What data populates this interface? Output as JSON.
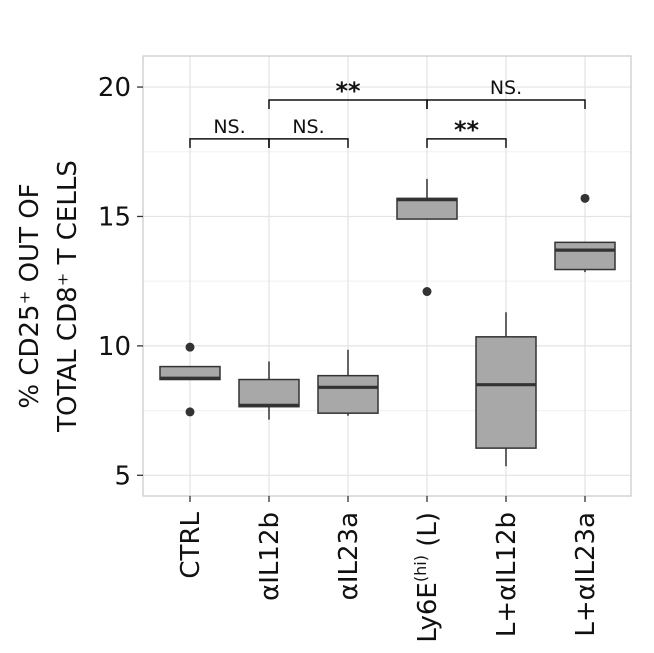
{
  "chart_data": {
    "type": "box",
    "title": "",
    "xlabel": "",
    "ylabel_line1": "% CD25⁺ OUT OF",
    "ylabel_line2": "TOTAL CD8⁺ T CELLS",
    "ylim": [
      4.2,
      21.2
    ],
    "yticks": [
      5,
      10,
      15,
      20
    ],
    "grid": true,
    "box_color": "#a8a8a8",
    "outline_color": "#333333",
    "categories": [
      {
        "label": "CTRL",
        "superscript": "",
        "suffix": ""
      },
      {
        "label": "αIL12b",
        "superscript": "",
        "suffix": ""
      },
      {
        "label": "αIL23a",
        "superscript": "",
        "suffix": ""
      },
      {
        "label": "Ly6E",
        "superscript": "(hi)",
        "suffix": " (L)"
      },
      {
        "label": "L+αIL12b",
        "superscript": "",
        "suffix": ""
      },
      {
        "label": "L+αIL23a",
        "superscript": "",
        "suffix": ""
      }
    ],
    "boxes": [
      {
        "whisker_low": 8.7,
        "q1": 8.7,
        "median": 8.75,
        "q3": 9.2,
        "whisker_high": 9.2,
        "outliers": [
          9.95,
          7.45
        ]
      },
      {
        "whisker_low": 7.15,
        "q1": 7.65,
        "median": 7.7,
        "q3": 8.7,
        "whisker_high": 9.4,
        "outliers": []
      },
      {
        "whisker_low": 7.3,
        "q1": 7.4,
        "median": 8.4,
        "q3": 8.85,
        "whisker_high": 9.85,
        "outliers": []
      },
      {
        "whisker_low": 14.9,
        "q1": 14.9,
        "median": 15.65,
        "q3": 15.7,
        "whisker_high": 16.45,
        "outliers": [
          12.1
        ]
      },
      {
        "whisker_low": 5.35,
        "q1": 6.05,
        "median": 8.5,
        "q3": 10.35,
        "whisker_high": 11.3,
        "outliers": []
      },
      {
        "whisker_low": 12.85,
        "q1": 12.95,
        "median": 13.7,
        "q3": 14.0,
        "whisker_high": 14.0,
        "outliers": [
          15.7
        ]
      }
    ],
    "significance": [
      {
        "from": 0,
        "to": 1,
        "y": 18.0,
        "label": "NS."
      },
      {
        "from": 1,
        "to": 2,
        "y": 18.0,
        "label": "NS."
      },
      {
        "from": 1,
        "to": 3,
        "y": 19.5,
        "label": "**"
      },
      {
        "from": 3,
        "to": 5,
        "y": 19.5,
        "label": "NS."
      },
      {
        "from": 3,
        "to": 4,
        "y": 18.0,
        "label": "**"
      }
    ]
  }
}
